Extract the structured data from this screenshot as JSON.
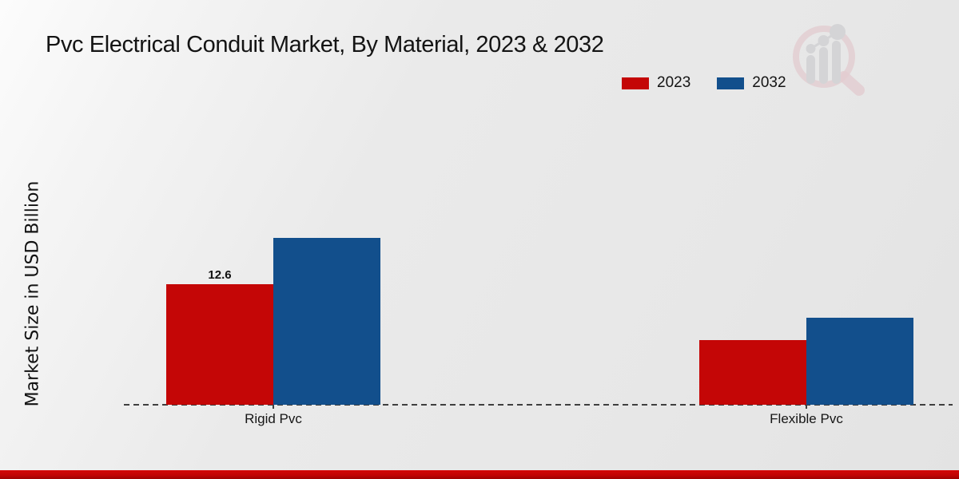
{
  "chart_data": {
    "type": "bar",
    "title": "Pvc Electrical Conduit Market, By Material, 2023 & 2032",
    "ylabel": "Market Size in USD Billion",
    "categories": [
      "Rigid Pvc",
      "Flexible Pvc"
    ],
    "series": [
      {
        "name": "2023",
        "color": "#c40606",
        "values": [
          12.6,
          6.8
        ]
      },
      {
        "name": "2032",
        "color": "#124f8c",
        "values": [
          17.4,
          9.1
        ]
      }
    ],
    "data_labels": [
      {
        "series": "2023",
        "category": "Rigid Pvc",
        "text": "12.6"
      }
    ],
    "ylim": [
      0,
      29.8
    ],
    "grid": false,
    "legend_position": "top-right",
    "baseline_style": "dashed"
  },
  "branding": {
    "logo_icon": "magnifier-bar-chart-watermark",
    "footer_band_color": "#c00505"
  },
  "colors": {
    "background": "#e9e9e9",
    "baseline": "#3f3f3f",
    "text": "#141414"
  }
}
